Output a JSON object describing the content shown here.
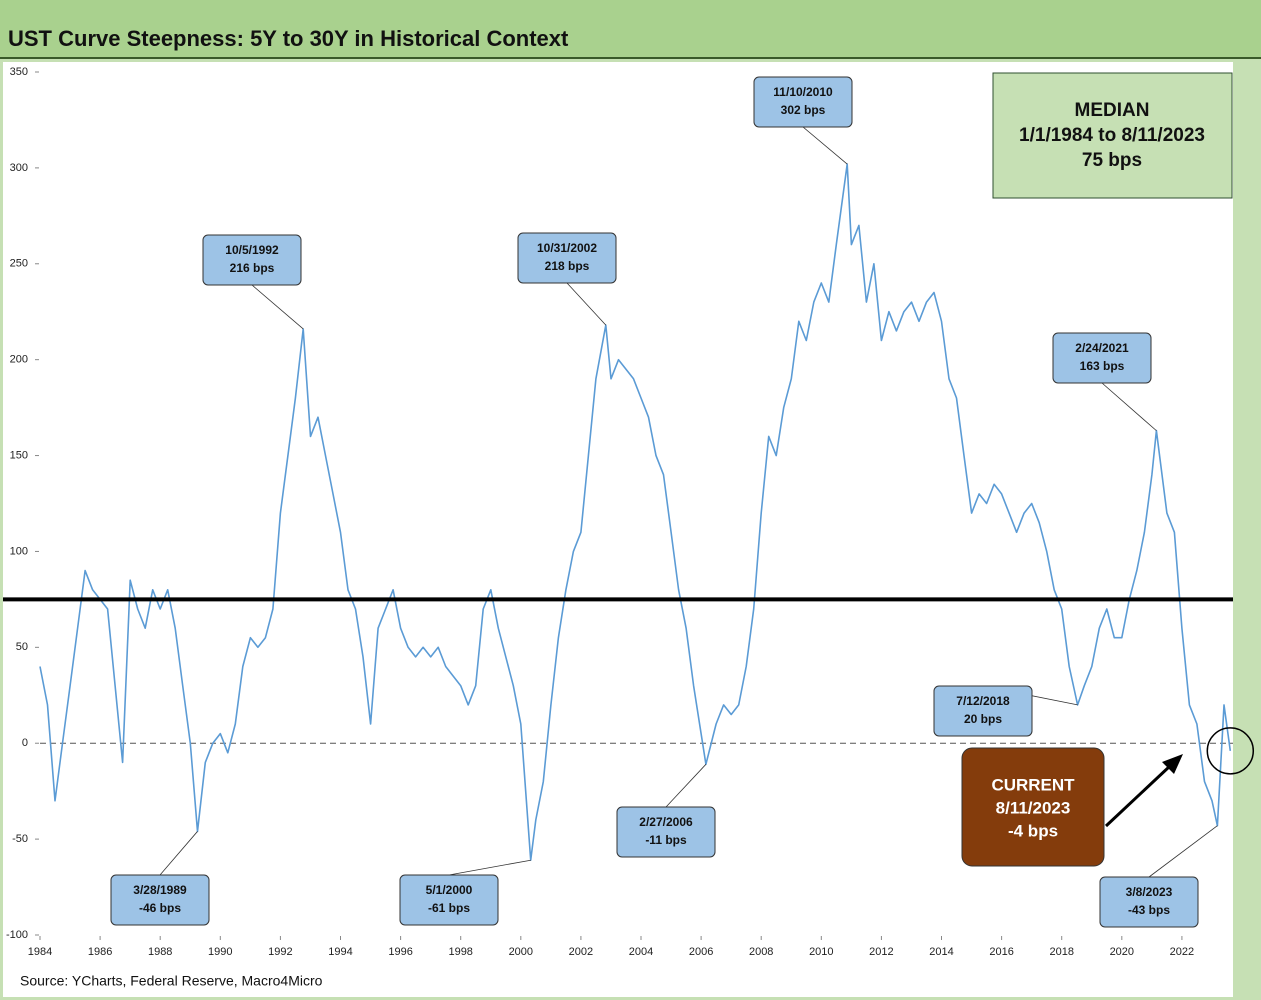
{
  "chart_data": {
    "type": "line",
    "title": "UST Curve Steepness: 5Y to 30Y in Historical Context",
    "source": "Source: YCharts, Federal Reserve, Macro4Micro",
    "x": [
      1984,
      1984.25,
      1984.5,
      1984.75,
      1985,
      1985.25,
      1985.5,
      1985.75,
      1986,
      1986.25,
      1986.5,
      1986.75,
      1987,
      1987.25,
      1987.5,
      1987.75,
      1988,
      1988.25,
      1988.5,
      1988.75,
      1989,
      1989.24,
      1989.5,
      1989.75,
      1990,
      1990.25,
      1990.5,
      1990.75,
      1991,
      1991.25,
      1991.5,
      1991.75,
      1992,
      1992.25,
      1992.5,
      1992.76,
      1993,
      1993.25,
      1993.5,
      1993.75,
      1994,
      1994.25,
      1994.5,
      1994.75,
      1995,
      1995.25,
      1995.5,
      1995.75,
      1996,
      1996.25,
      1996.5,
      1996.75,
      1997,
      1997.25,
      1997.5,
      1997.75,
      1998,
      1998.25,
      1998.5,
      1998.75,
      1999,
      1999.25,
      1999.5,
      1999.75,
      2000,
      2000.33,
      2000.5,
      2000.75,
      2001,
      2001.25,
      2001.5,
      2001.75,
      2002,
      2002.25,
      2002.5,
      2002.83,
      2003,
      2003.25,
      2003.5,
      2003.75,
      2004,
      2004.25,
      2004.5,
      2004.75,
      2005,
      2005.25,
      2005.5,
      2005.75,
      2006.16,
      2006.5,
      2006.75,
      2007,
      2007.25,
      2007.5,
      2007.75,
      2008,
      2008.25,
      2008.5,
      2008.75,
      2009,
      2009.25,
      2009.5,
      2009.75,
      2010,
      2010.25,
      2010.5,
      2010.86,
      2011,
      2011.25,
      2011.5,
      2011.75,
      2012,
      2012.25,
      2012.5,
      2012.75,
      2013,
      2013.25,
      2013.5,
      2013.75,
      2014,
      2014.25,
      2014.5,
      2014.75,
      2015,
      2015.25,
      2015.5,
      2015.75,
      2016,
      2016.25,
      2016.5,
      2016.75,
      2017,
      2017.25,
      2017.5,
      2017.75,
      2018,
      2018.25,
      2018.53,
      2018.75,
      2019,
      2019.25,
      2019.5,
      2019.75,
      2020,
      2020.25,
      2020.5,
      2020.75,
      2021,
      2021.15,
      2021.5,
      2021.75,
      2022,
      2022.25,
      2022.5,
      2022.75,
      2023,
      2023.18,
      2023.4,
      2023.61
    ],
    "series": [
      {
        "color": "#5b9bd5",
        "values": [
          40,
          20,
          -30,
          0,
          30,
          60,
          90,
          80,
          75,
          70,
          30,
          -10,
          85,
          70,
          60,
          80,
          70,
          80,
          60,
          30,
          0,
          -46,
          -10,
          0,
          5,
          -5,
          10,
          40,
          55,
          50,
          55,
          70,
          120,
          150,
          180,
          216,
          160,
          170,
          150,
          130,
          110,
          80,
          70,
          45,
          10,
          60,
          70,
          80,
          60,
          50,
          45,
          50,
          45,
          50,
          40,
          35,
          30,
          20,
          30,
          70,
          80,
          60,
          45,
          30,
          10,
          -61,
          -40,
          -20,
          20,
          55,
          80,
          100,
          110,
          150,
          190,
          218,
          190,
          200,
          195,
          190,
          180,
          170,
          150,
          140,
          110,
          80,
          60,
          30,
          -11,
          10,
          20,
          15,
          20,
          40,
          70,
          120,
          160,
          150,
          175,
          190,
          220,
          210,
          230,
          240,
          230,
          260,
          302,
          260,
          270,
          230,
          250,
          210,
          225,
          215,
          225,
          230,
          220,
          230,
          235,
          220,
          190,
          180,
          150,
          120,
          130,
          125,
          135,
          130,
          120,
          110,
          120,
          125,
          115,
          100,
          80,
          70,
          40,
          20,
          30,
          40,
          60,
          70,
          55,
          55,
          75,
          90,
          110,
          140,
          163,
          120,
          110,
          60,
          20,
          10,
          -20,
          -30,
          -43,
          20,
          -4
        ]
      }
    ],
    "xlim": [
      1984,
      2023.7
    ],
    "ylim": [
      -100,
      350
    ],
    "xticks": [
      1984,
      1986,
      1988,
      1990,
      1992,
      1994,
      1996,
      1998,
      2000,
      2002,
      2004,
      2006,
      2008,
      2010,
      2012,
      2014,
      2016,
      2018,
      2020,
      2022
    ],
    "yticks": [
      -100,
      -50,
      0,
      50,
      100,
      150,
      200,
      250,
      300,
      350
    ],
    "median": {
      "title": "MEDIAN",
      "period": "1/1/1984 to 8/11/2023",
      "label": "75 bps",
      "value": 75
    },
    "current": {
      "title": "CURRENT",
      "date": "8/11/2023",
      "label": "-4 bps"
    },
    "annotations": [
      {
        "date": "3/28/1989",
        "label": "-46 bps",
        "x": 1989.24,
        "y": -46
      },
      {
        "date": "10/5/1992",
        "label": "216 bps",
        "x": 1992.76,
        "y": 216
      },
      {
        "date": "5/1/2000",
        "label": "-61 bps",
        "x": 2000.33,
        "y": -61
      },
      {
        "date": "10/31/2002",
        "label": "218 bps",
        "x": 2002.83,
        "y": 218
      },
      {
        "date": "2/27/2006",
        "label": "-11 bps",
        "x": 2006.16,
        "y": -11
      },
      {
        "date": "11/10/2010",
        "label": "302 bps",
        "x": 2010.86,
        "y": 302
      },
      {
        "date": "7/12/2018",
        "label": "20 bps",
        "x": 2018.53,
        "y": 20
      },
      {
        "date": "2/24/2021",
        "label": "163 bps",
        "x": 2021.15,
        "y": 163
      },
      {
        "date": "3/8/2023",
        "label": "-43 bps",
        "x": 2023.18,
        "y": -43
      }
    ]
  }
}
